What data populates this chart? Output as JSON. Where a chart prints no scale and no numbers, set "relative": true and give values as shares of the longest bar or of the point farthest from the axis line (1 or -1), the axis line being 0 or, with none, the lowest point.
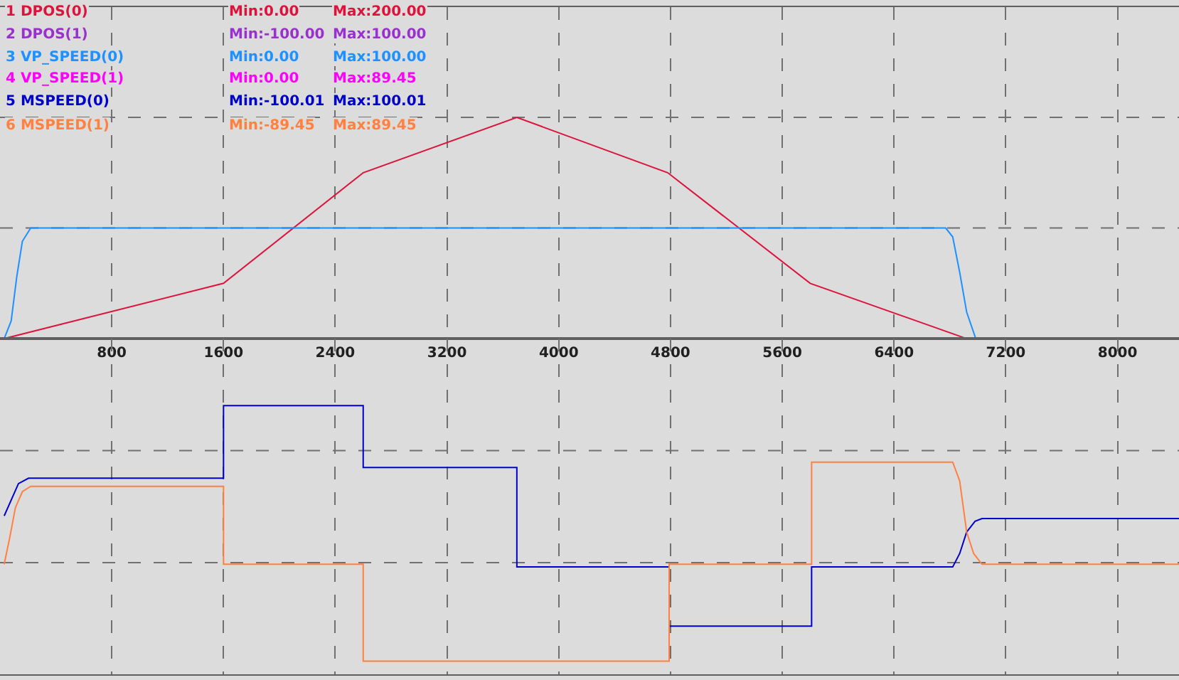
{
  "chart_data": [
    {
      "type": "line",
      "relative": true,
      "xlim": [
        0,
        8440
      ],
      "xticks": [
        800,
        1600,
        2400,
        3200,
        4000,
        4800,
        5600,
        6400,
        7200,
        8000
      ],
      "tick_labels": "x",
      "grid": true,
      "marker": "none",
      "line_style": "solid",
      "annotations": [
        "Min:0.00",
        "Max:200.00",
        "Min:-100.00",
        "Max:100.00",
        "Min:0.00",
        "Max:100.00",
        "Min:0.00",
        "Max:89.45"
      ],
      "series": [
        {
          "name": "1 DPOS(0)",
          "color": "#dc143c",
          "x": [
            30,
            1600,
            2600,
            3700,
            4780,
            5800,
            6920,
            8440
          ],
          "values": [
            0,
            0.25,
            0.75,
            1,
            0.75,
            0.25,
            0,
            0
          ]
        },
        {
          "name": "2 DPOS(1)",
          "color": "#9932cc"
        },
        {
          "name": "3 VP_SPEED(0)",
          "color": "#1e90ff",
          "x": [
            30,
            80,
            120,
            160,
            220,
            6770,
            6820,
            6870,
            6920,
            6985,
            8440
          ],
          "values": [
            0,
            0.08,
            0.28,
            0.44,
            0.5,
            0.5,
            0.46,
            0.3,
            0.12,
            0,
            0
          ]
        },
        {
          "name": "4 VP_SPEED(1)",
          "color": "#ff00ff"
        }
      ]
    },
    {
      "type": "line",
      "relative": true,
      "xlim": [
        0,
        8440
      ],
      "xticks": [
        {
          "value": 800,
          "label": null
        },
        {
          "value": 1600,
          "label": null
        },
        {
          "value": 2400,
          "label": null
        },
        {
          "value": 3200,
          "label": null
        },
        {
          "value": 4000,
          "label": null
        },
        {
          "value": 4800,
          "label": null
        },
        {
          "value": 5600,
          "label": null
        },
        {
          "value": 6400,
          "label": null
        },
        {
          "value": 7200,
          "label": null
        },
        {
          "value": 8000,
          "label": null
        }
      ],
      "tick_labels": false,
      "grid": true,
      "marker": "none",
      "line_style": "solid",
      "annotations": [
        "Min:-100.01",
        "Max:100.01",
        "Min:-89.45",
        "Max:89.45"
      ],
      "series": [
        {
          "name": "5 MSPEED(0)",
          "color": "#0000cd",
          "x": [
            30,
            81,
            132,
            204,
            1600,
            1600,
            2600,
            2600,
            3700,
            3700,
            4790,
            4790,
            5810,
            5810,
            6820,
            6870,
            6920,
            6980,
            7030,
            8440
          ],
          "values": [
            0.59,
            0.65,
            0.71,
            0.73,
            0.73,
            1,
            1,
            0.77,
            0.77,
            0.4,
            0.4,
            0.18,
            0.18,
            0.4,
            0.4,
            0.45,
            0.53,
            0.57,
            0.58,
            0.58
          ]
        },
        {
          "name": "6 MSPEED(1)",
          "color": "#ff8040",
          "x": [
            30,
            70,
            110,
            160,
            220,
            1600,
            1600,
            2600,
            2600,
            4790,
            4790,
            5810,
            5810,
            6820,
            6870,
            6920,
            6970,
            7030,
            8440
          ],
          "values": [
            0.41,
            0.51,
            0.62,
            0.68,
            0.7,
            0.7,
            0.41,
            0.41,
            0.05,
            0.05,
            0.41,
            0.41,
            0.79,
            0.79,
            0.72,
            0.53,
            0.45,
            0.41,
            0.41
          ]
        }
      ]
    }
  ]
}
